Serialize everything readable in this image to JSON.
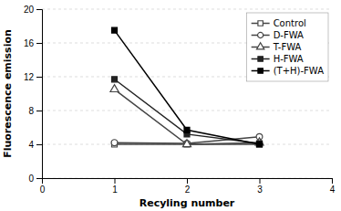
{
  "chart_data": {
    "type": "line",
    "x": [
      1,
      2,
      3
    ],
    "series": [
      {
        "name": "Control",
        "color": "#444444",
        "marker": "square-open",
        "values": [
          4.0,
          4.0,
          4.0
        ]
      },
      {
        "name": "D-FWA",
        "color": "#444444",
        "marker": "circle-open",
        "values": [
          4.2,
          4.1,
          4.9
        ]
      },
      {
        "name": "T-FWA",
        "color": "#444444",
        "marker": "triangle-open",
        "values": [
          10.5,
          4.0,
          4.2
        ]
      },
      {
        "name": "H-FWA",
        "color": "#222222",
        "marker": "square",
        "values": [
          11.7,
          5.2,
          4.1
        ]
      },
      {
        "name": "(T+H)-FWA",
        "color": "#000000",
        "marker": "square",
        "values": [
          17.5,
          5.7,
          4.0
        ]
      }
    ],
    "xlim": [
      0,
      4
    ],
    "xticks": [
      0,
      1,
      2,
      3,
      4
    ],
    "ylim": [
      0,
      20
    ],
    "yticks": [
      0,
      4,
      8,
      12,
      16,
      20
    ],
    "xlabel": "Recyling number",
    "ylabel": "Fluorescence emission",
    "grid": true,
    "legend": "upper-right"
  }
}
